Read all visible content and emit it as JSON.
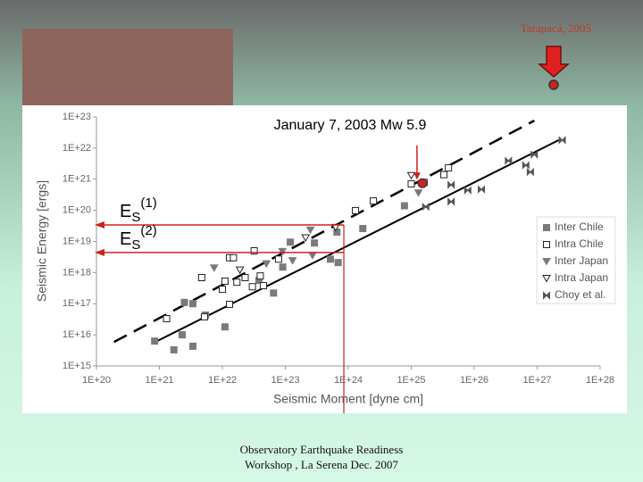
{
  "slide": {
    "caption": "Tarapacá, 2005",
    "footer": [
      "Observatory Earthquake Readiness",
      "Workshop , La Serena Dec. 2007"
    ]
  },
  "chart_data": {
    "type": "scatter",
    "title": "January 7, 2003 Mw 5.9",
    "x_label": "Seismic Moment [dyne cm]",
    "y_label": "Seismic Energy [ergs]",
    "xscale": "log",
    "yscale": "log",
    "xlim": [
      1e+20,
      1e+28
    ],
    "ylim": [
      1000000000000000.0,
      1e+23
    ],
    "xticks": [
      {
        "value": 1e+20,
        "label": "1E+20"
      },
      {
        "value": 1e+21,
        "label": "1E+21"
      },
      {
        "value": 1e+22,
        "label": "1E+22"
      },
      {
        "value": 1e+23,
        "label": "1E+23"
      },
      {
        "value": 1e+24,
        "label": "1E+24"
      },
      {
        "value": 1e+25,
        "label": "1E+25"
      },
      {
        "value": 1e+26,
        "label": "1E+26"
      },
      {
        "value": 1e+27,
        "label": "1E+27"
      },
      {
        "value": 1e+28,
        "label": "1E+28"
      }
    ],
    "yticks": [
      {
        "value": 1000000000000000.0,
        "label": "1E+15"
      },
      {
        "value": 1e+16,
        "label": "1E+16"
      },
      {
        "value": 1e+17,
        "label": "1E+17"
      },
      {
        "value": 1e+18,
        "label": "1E+18"
      },
      {
        "value": 1e+19,
        "label": "1E+19"
      },
      {
        "value": 1e+20,
        "label": "1E+20"
      },
      {
        "value": 1e+21,
        "label": "1E+21"
      },
      {
        "value": 1e+22,
        "label": "1E+22"
      },
      {
        "value": 1e+23,
        "label": "1E+23"
      }
    ],
    "legend": "right",
    "series": [
      {
        "name": "Inter Chile",
        "marker": "square",
        "filled": true,
        "color": "#7a7a7a",
        "x": [
          8.4e+20,
          1.7e+21,
          2.3e+21,
          3.4e+21,
          2.5e+21,
          3.4e+21,
          5.4e+21,
          1.1e+22,
          6.5e+22,
          3.8e+22,
          1.2e+23,
          9.1e+22,
          2.9e+23,
          6.6e+23,
          6.9e+23,
          5.2e+23,
          1.7e+24,
          7.8e+24
        ],
        "y": [
          6300000000000000.0,
          3300000000000000.0,
          1e+16,
          4300000000000000.0,
          1.1e+17,
          1e+17,
          4.3e+16,
          1.8e+16,
          2.2e+17,
          5.6e+17,
          9.5e+18,
          1.5e+18,
          8.9e+18,
          2e+19,
          2.1e+18,
          2.7e+18,
          2.6e+19,
          1.4e+20
        ]
      },
      {
        "name": "Intra Chile",
        "marker": "square",
        "filled": false,
        "color": "#222222",
        "x": [
          1.3e+21,
          5.2e+21,
          1.3e+22,
          4.7e+21,
          1.1e+22,
          1e+22,
          1.7e+22,
          2.3e+22,
          3e+22,
          1.3e+22,
          1.5e+22,
          3.2e+22,
          4e+22,
          4.5e+22,
          7.8e+22,
          1.3e+24,
          2.5e+24,
          1e+25,
          3.3e+25,
          3.9e+25,
          1.6e+25
        ],
        "y": [
          3.3e+16,
          3.8e+16,
          9.5e+16,
          6.9e+17,
          5.3e+17,
          2.9e+17,
          4.9e+17,
          6.9e+17,
          3.5e+17,
          3e+18,
          3e+18,
          5e+18,
          7.8e+17,
          3.8e+17,
          2.7e+18,
          9.8e+19,
          2e+20,
          7.1e+20,
          1.4e+21,
          2.3e+21,
          7.9e+20
        ]
      },
      {
        "name": "Inter Japan",
        "marker": "triangle-down",
        "filled": true,
        "color": "#7a7a7a",
        "x": [
          7.4e+21,
          5e+22,
          9e+22,
          1.3e+23,
          2.7e+23,
          2.5e+23,
          1.3e+25
        ],
        "y": [
          1.4e+18,
          1.9e+18,
          4.7e+18,
          2.4e+18,
          3.5e+18,
          2.3e+19,
          3.6e+20
        ]
      },
      {
        "name": "Intra Japan",
        "marker": "triangle-down",
        "filled": false,
        "color": "#222222",
        "x": [
          1.9e+22,
          2.1e+23,
          6.3e+23,
          1e+25
        ],
        "y": [
          1.2e+18,
          1.3e+19,
          2.8e+19,
          1.3e+21
        ]
      },
      {
        "name": "Choy et al.",
        "marker": "bowtie",
        "filled": false,
        "color": "#555555",
        "x": [
          1.7e+25,
          4.3e+25,
          4.3e+25,
          7.9e+25,
          1.3e+26,
          3.5e+26,
          6.6e+26,
          7.8e+26,
          9e+26,
          2.5e+27
        ],
        "y": [
          1.3e+20,
          1.9e+20,
          6.6e+20,
          4.4e+20,
          4.7e+20,
          3.9e+21,
          2.8e+21,
          1.7e+21,
          6.2e+21,
          1.8e+22
        ]
      }
    ],
    "fit_lines": [
      {
        "style": "solid",
        "x": [
          7.6e+20,
          2.2e+27
        ],
        "y": [
          5200000000000000.0,
          1.8e+22
        ]
      },
      {
        "style": "dashed",
        "x": [
          1.9e+20,
          9e+26
        ],
        "y": [
          5900000000000000.0,
          7.6e+22
        ]
      }
    ],
    "event": {
      "x": 1.5e+25,
      "y": 7.4e+20
    },
    "estimates": {
      "moment": 8.5e+23,
      "labels": [
        {
          "base": "E",
          "sub": "S",
          "sup": "(1)",
          "y": 3.4e+19
        },
        {
          "base": "E",
          "sub": "S",
          "sup": "(2)",
          "y": 4.4e+18
        }
      ]
    }
  }
}
